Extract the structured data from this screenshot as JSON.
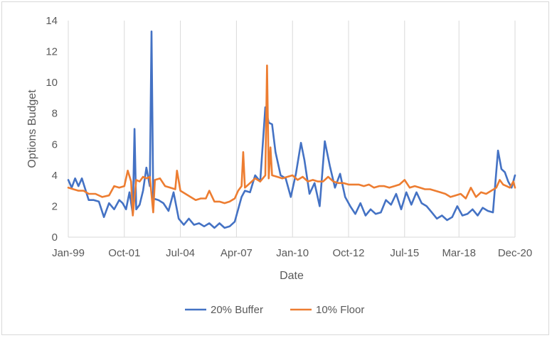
{
  "chart_data": {
    "type": "line",
    "title": "",
    "xlabel": "Date",
    "ylabel": "Options Budget",
    "ylim": [
      0,
      14
    ],
    "yticks": [
      0,
      2,
      4,
      6,
      8,
      10,
      12,
      14
    ],
    "xlim": [
      "Jan-99",
      "Dec-20"
    ],
    "xticks": [
      "Jan-99",
      "Oct-01",
      "Jul-04",
      "Apr-07",
      "Jan-10",
      "Oct-12",
      "Jul-15",
      "Mar-18",
      "Dec-20"
    ],
    "grid": "vertical",
    "legend": "bottom",
    "colors": {
      "20% Buffer": "#4472c4",
      "10% Floor": "#ed7d31",
      "grid": "#d9d9d9"
    },
    "series": [
      {
        "name": "20% Buffer",
        "points": [
          [
            "Jan-99",
            3.7
          ],
          [
            "Mar-99",
            3.2
          ],
          [
            "May-99",
            3.8
          ],
          [
            "Jul-99",
            3.3
          ],
          [
            "Sep-99",
            3.8
          ],
          [
            "Nov-99",
            3.1
          ],
          [
            "Jan-00",
            2.4
          ],
          [
            "Apr-00",
            2.4
          ],
          [
            "Jul-00",
            2.3
          ],
          [
            "Oct-00",
            1.3
          ],
          [
            "Jan-01",
            2.2
          ],
          [
            "Apr-01",
            1.8
          ],
          [
            "Jul-01",
            2.4
          ],
          [
            "Sep-01",
            2.2
          ],
          [
            "Nov-01",
            1.8
          ],
          [
            "Jan-02",
            2.9
          ],
          [
            "Mar-02",
            1.5
          ],
          [
            "Apr-02",
            7.0
          ],
          [
            "May-02",
            1.8
          ],
          [
            "Jul-02",
            2.1
          ],
          [
            "Sep-02",
            3.0
          ],
          [
            "Nov-02",
            4.5
          ],
          [
            "Jan-03",
            3.3
          ],
          [
            "Feb-03",
            13.3
          ],
          [
            "Mar-03",
            2.5
          ],
          [
            "Jun-03",
            2.4
          ],
          [
            "Sep-03",
            2.2
          ],
          [
            "Dec-03",
            1.7
          ],
          [
            "Mar-04",
            2.9
          ],
          [
            "Jun-04",
            1.2
          ],
          [
            "Sep-04",
            0.8
          ],
          [
            "Dec-04",
            1.2
          ],
          [
            "Mar-05",
            0.8
          ],
          [
            "Jun-05",
            0.9
          ],
          [
            "Sep-05",
            0.7
          ],
          [
            "Dec-05",
            0.9
          ],
          [
            "Mar-06",
            0.6
          ],
          [
            "Jun-06",
            0.9
          ],
          [
            "Sep-06",
            0.6
          ],
          [
            "Dec-06",
            0.7
          ],
          [
            "Mar-07",
            1.0
          ],
          [
            "May-07",
            1.8
          ],
          [
            "Jul-07",
            2.6
          ],
          [
            "Sep-07",
            3.0
          ],
          [
            "Dec-07",
            2.9
          ],
          [
            "Mar-08",
            4.0
          ],
          [
            "Jun-08",
            3.6
          ],
          [
            "Sep-08",
            8.4
          ],
          [
            "Nov-08",
            7.4
          ],
          [
            "Jan-09",
            7.3
          ],
          [
            "Mar-09",
            5.5
          ],
          [
            "Jun-09",
            4.0
          ],
          [
            "Sep-09",
            3.8
          ],
          [
            "Dec-09",
            2.6
          ],
          [
            "Mar-10",
            4.1
          ],
          [
            "Jun-10",
            6.1
          ],
          [
            "Aug-10",
            5.0
          ],
          [
            "Nov-10",
            2.8
          ],
          [
            "Feb-11",
            3.5
          ],
          [
            "May-11",
            2.0
          ],
          [
            "Aug-11",
            6.2
          ],
          [
            "Nov-11",
            4.6
          ],
          [
            "Feb-12",
            3.2
          ],
          [
            "May-12",
            4.1
          ],
          [
            "Aug-12",
            2.6
          ],
          [
            "Nov-12",
            2.0
          ],
          [
            "Feb-13",
            1.5
          ],
          [
            "May-13",
            2.2
          ],
          [
            "Aug-13",
            1.4
          ],
          [
            "Nov-13",
            1.8
          ],
          [
            "Feb-14",
            1.5
          ],
          [
            "May-14",
            1.6
          ],
          [
            "Aug-14",
            2.4
          ],
          [
            "Nov-14",
            2.1
          ],
          [
            "Feb-15",
            2.8
          ],
          [
            "May-15",
            1.8
          ],
          [
            "Aug-15",
            2.9
          ],
          [
            "Nov-15",
            2.1
          ],
          [
            "Feb-16",
            2.9
          ],
          [
            "May-16",
            2.2
          ],
          [
            "Aug-16",
            2.0
          ],
          [
            "Nov-16",
            1.6
          ],
          [
            "Feb-17",
            1.2
          ],
          [
            "May-17",
            1.4
          ],
          [
            "Aug-17",
            1.1
          ],
          [
            "Nov-17",
            1.3
          ],
          [
            "Feb-18",
            2.0
          ],
          [
            "May-18",
            1.4
          ],
          [
            "Aug-18",
            1.5
          ],
          [
            "Nov-18",
            1.8
          ],
          [
            "Feb-19",
            1.4
          ],
          [
            "May-19",
            1.9
          ],
          [
            "Aug-19",
            1.7
          ],
          [
            "Nov-19",
            1.6
          ],
          [
            "Feb-20",
            5.6
          ],
          [
            "Apr-20",
            4.4
          ],
          [
            "Jun-20",
            4.2
          ],
          [
            "Aug-20",
            3.6
          ],
          [
            "Oct-20",
            3.2
          ],
          [
            "Dec-20",
            4.0
          ]
        ]
      },
      {
        "name": "10% Floor",
        "points": [
          [
            "Jan-99",
            3.2
          ],
          [
            "Apr-99",
            3.1
          ],
          [
            "Jul-99",
            3.0
          ],
          [
            "Oct-99",
            3.0
          ],
          [
            "Jan-00",
            2.8
          ],
          [
            "May-00",
            2.8
          ],
          [
            "Sep-00",
            2.6
          ],
          [
            "Jan-01",
            2.7
          ],
          [
            "Apr-01",
            3.3
          ],
          [
            "Jul-01",
            3.2
          ],
          [
            "Oct-01",
            3.3
          ],
          [
            "Dec-01",
            4.3
          ],
          [
            "Feb-02",
            3.6
          ],
          [
            "Mar-02",
            1.4
          ],
          [
            "May-02",
            3.7
          ],
          [
            "Jul-02",
            3.6
          ],
          [
            "Sep-02",
            3.9
          ],
          [
            "Nov-02",
            3.8
          ],
          [
            "Jan-03",
            3.9
          ],
          [
            "Mar-03",
            1.6
          ],
          [
            "Apr-03",
            3.7
          ],
          [
            "Jul-03",
            3.8
          ],
          [
            "Oct-03",
            3.3
          ],
          [
            "Jan-04",
            3.2
          ],
          [
            "Apr-04",
            3.1
          ],
          [
            "May-04",
            4.3
          ],
          [
            "Jul-04",
            3.0
          ],
          [
            "Oct-04",
            2.8
          ],
          [
            "Jan-05",
            2.6
          ],
          [
            "Apr-05",
            2.4
          ],
          [
            "Jul-05",
            2.5
          ],
          [
            "Oct-05",
            2.5
          ],
          [
            "Dec-05",
            3.0
          ],
          [
            "Mar-06",
            2.3
          ],
          [
            "Jun-06",
            2.3
          ],
          [
            "Sep-06",
            2.2
          ],
          [
            "Dec-06",
            2.3
          ],
          [
            "Mar-07",
            2.5
          ],
          [
            "May-07",
            3.0
          ],
          [
            "Jul-07",
            3.3
          ],
          [
            "Aug-07",
            5.5
          ],
          [
            "Sep-07",
            3.2
          ],
          [
            "Dec-07",
            3.5
          ],
          [
            "Mar-08",
            3.8
          ],
          [
            "Jun-08",
            3.6
          ],
          [
            "Sep-08",
            4.0
          ],
          [
            "Oct-08",
            11.1
          ],
          [
            "Nov-08",
            3.8
          ],
          [
            "Dec-08",
            5.8
          ],
          [
            "Jan-09",
            4.0
          ],
          [
            "Apr-09",
            3.9
          ],
          [
            "Jul-09",
            3.8
          ],
          [
            "Oct-09",
            3.9
          ],
          [
            "Jan-10",
            4.0
          ],
          [
            "Apr-10",
            3.7
          ],
          [
            "Jul-10",
            3.9
          ],
          [
            "Oct-10",
            3.6
          ],
          [
            "Jan-11",
            3.7
          ],
          [
            "Apr-11",
            3.6
          ],
          [
            "Jul-11",
            3.6
          ],
          [
            "Oct-11",
            3.9
          ],
          [
            "Jan-12",
            3.6
          ],
          [
            "Apr-12",
            3.5
          ],
          [
            "Jul-12",
            3.5
          ],
          [
            "Oct-12",
            3.4
          ],
          [
            "Jan-13",
            3.4
          ],
          [
            "Apr-13",
            3.4
          ],
          [
            "Jul-13",
            3.3
          ],
          [
            "Oct-13",
            3.4
          ],
          [
            "Jan-14",
            3.2
          ],
          [
            "Apr-14",
            3.3
          ],
          [
            "Jul-14",
            3.3
          ],
          [
            "Oct-14",
            3.2
          ],
          [
            "Jan-15",
            3.3
          ],
          [
            "Apr-15",
            3.4
          ],
          [
            "Jul-15",
            3.7
          ],
          [
            "Oct-15",
            3.2
          ],
          [
            "Jan-16",
            3.3
          ],
          [
            "Apr-16",
            3.2
          ],
          [
            "Jul-16",
            3.1
          ],
          [
            "Oct-16",
            3.1
          ],
          [
            "Jan-17",
            3.0
          ],
          [
            "Apr-17",
            2.9
          ],
          [
            "Jul-17",
            2.8
          ],
          [
            "Oct-17",
            2.6
          ],
          [
            "Jan-18",
            2.7
          ],
          [
            "Apr-18",
            2.8
          ],
          [
            "Jul-18",
            2.5
          ],
          [
            "Oct-18",
            3.2
          ],
          [
            "Jan-19",
            2.6
          ],
          [
            "Apr-19",
            2.9
          ],
          [
            "Jul-19",
            2.8
          ],
          [
            "Oct-19",
            3.0
          ],
          [
            "Jan-20",
            3.2
          ],
          [
            "Mar-20",
            3.7
          ],
          [
            "May-20",
            3.4
          ],
          [
            "Jul-20",
            3.3
          ],
          [
            "Sep-20",
            3.2
          ],
          [
            "Nov-20",
            3.6
          ],
          [
            "Dec-20",
            3.2
          ]
        ]
      }
    ]
  }
}
